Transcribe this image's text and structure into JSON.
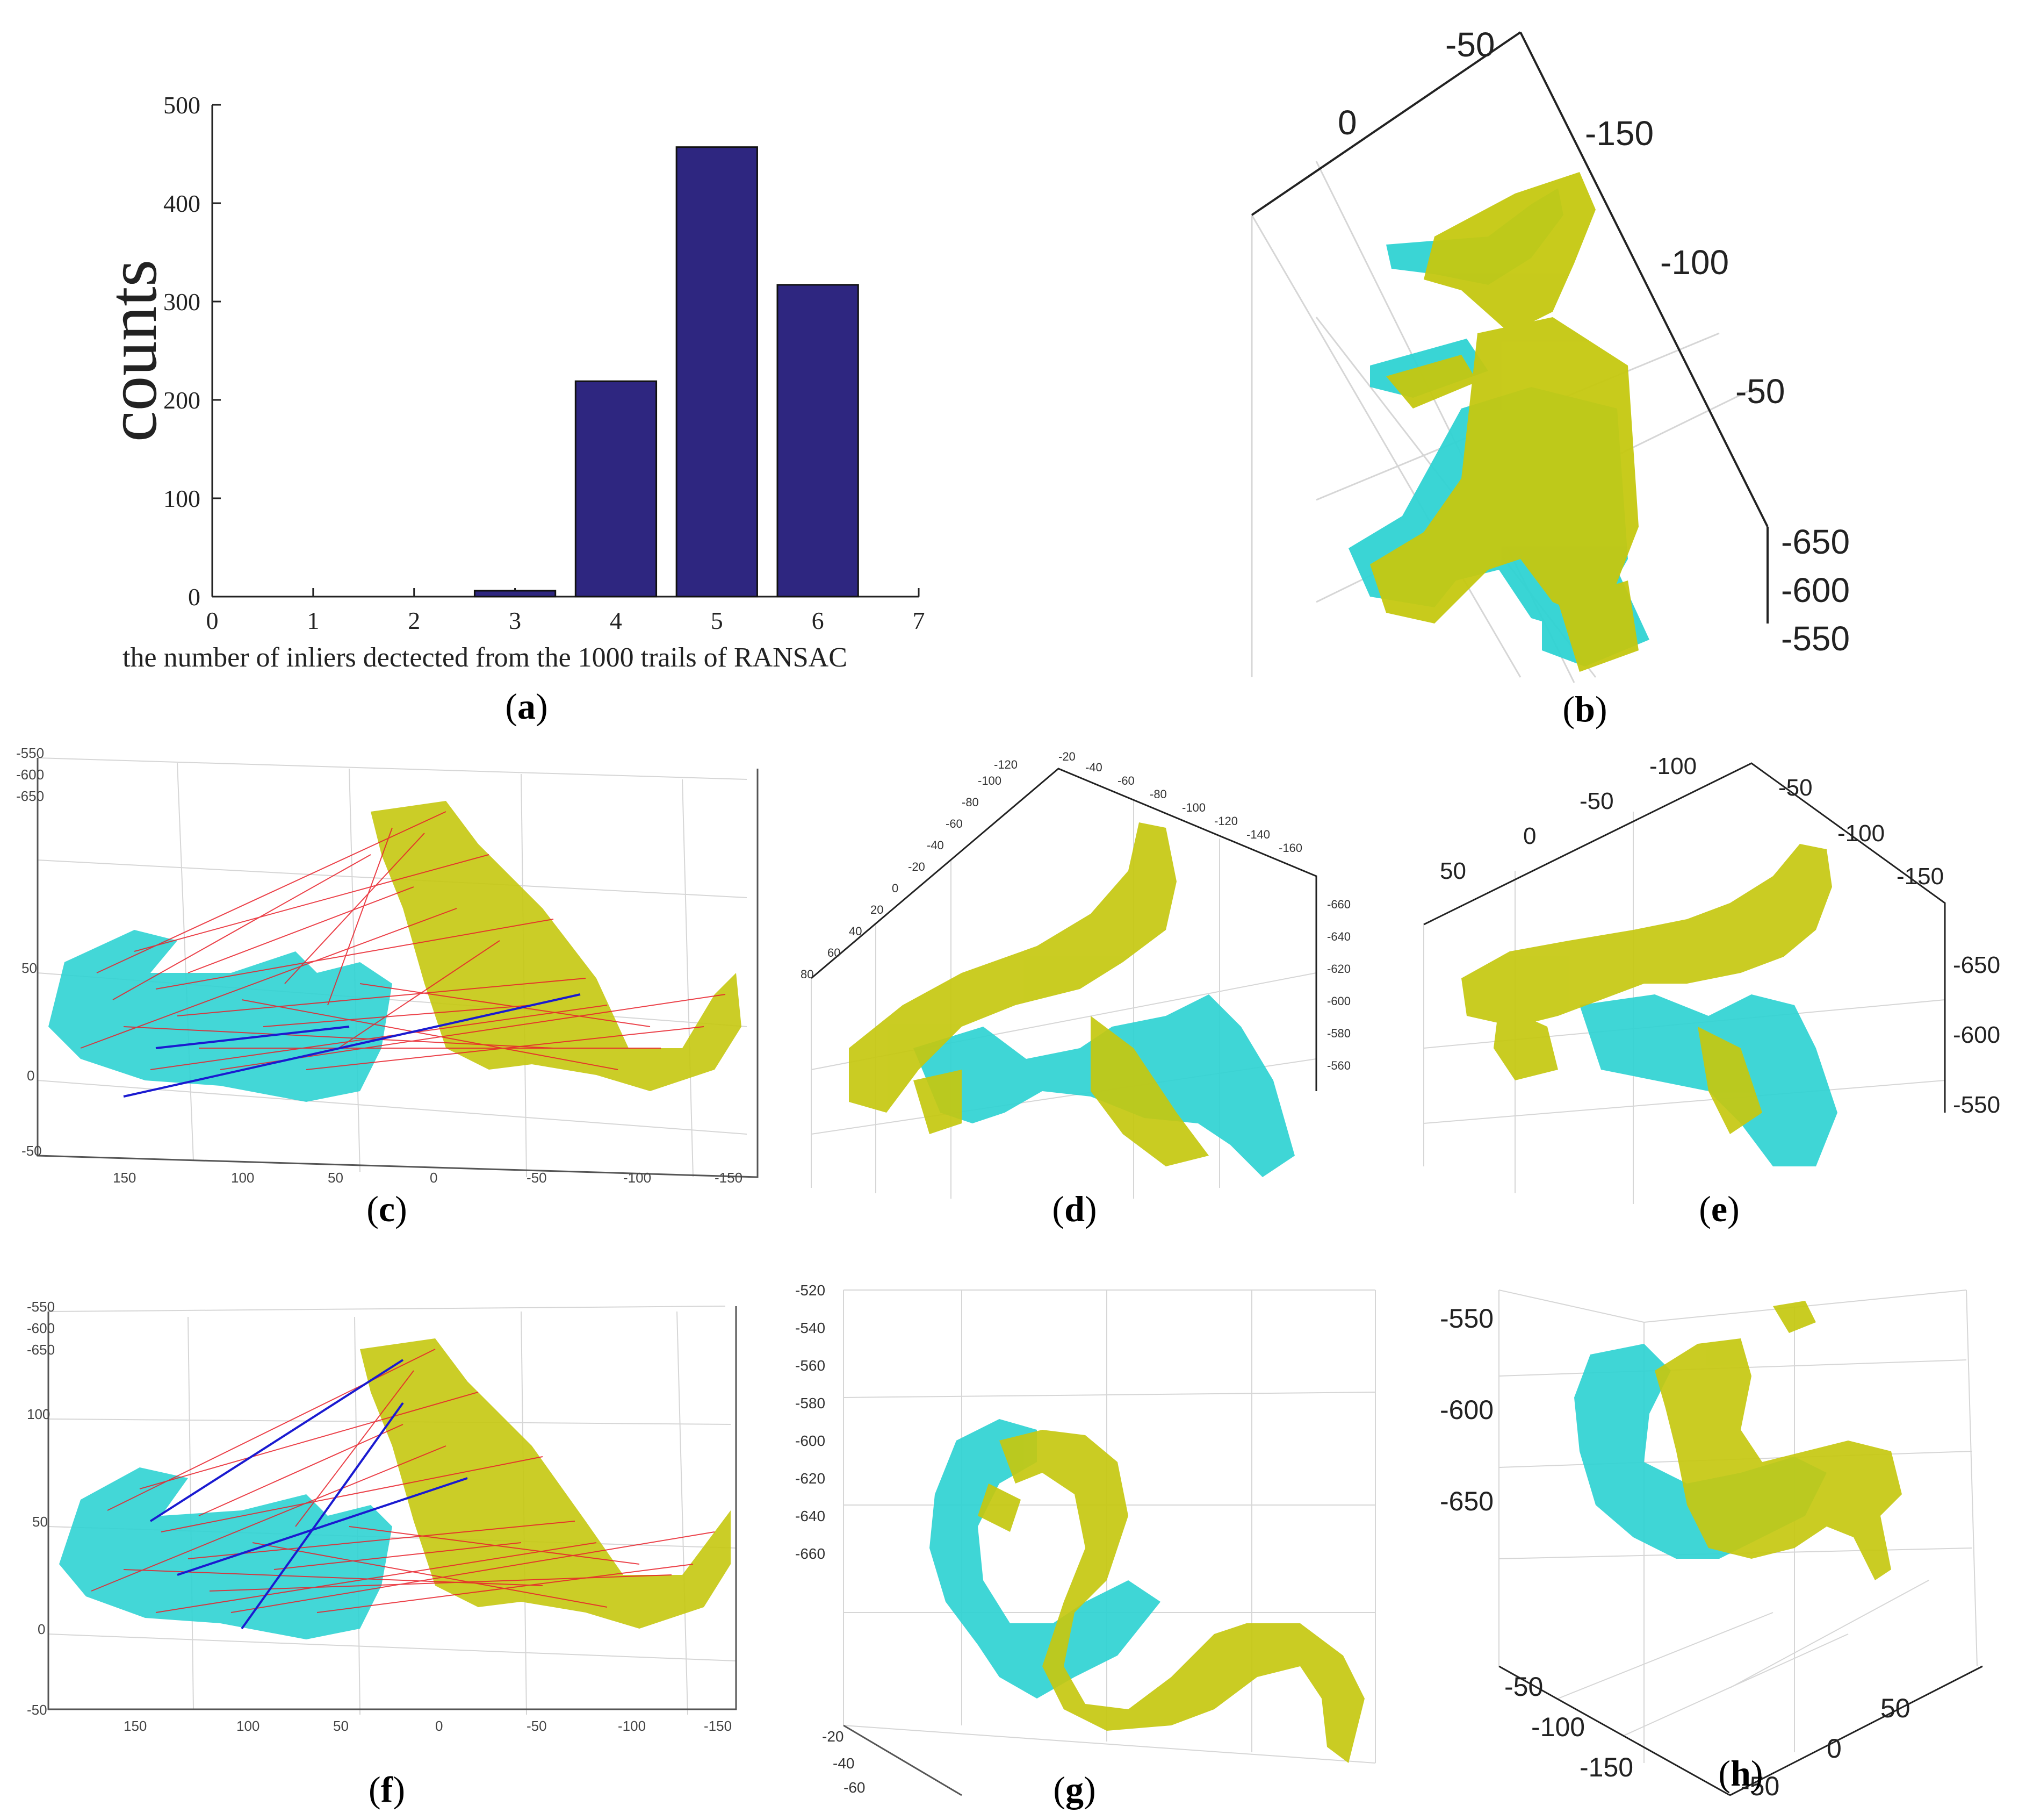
{
  "colors": {
    "bar": "#2e2680",
    "cyan": "#2fd3d3",
    "yellow": "#c5c810",
    "match_line": "#e8202a",
    "inlier_line": "#1a1ad0",
    "grid": "#d6d6d6",
    "axis": "#222222"
  },
  "chart_data": [
    {
      "id": "a",
      "type": "bar",
      "xlabel": "the number of inliers dectected from the 1000 trails of RANSAC",
      "ylabel": "counts",
      "xlim": [
        0,
        7
      ],
      "ylim": [
        0,
        500
      ],
      "xticks": [
        "0",
        "1",
        "2",
        "3",
        "4",
        "5",
        "6",
        "7"
      ],
      "yticks": [
        "0",
        "100",
        "200",
        "300",
        "400",
        "500"
      ],
      "x": [
        1,
        2,
        3,
        4,
        5,
        6
      ],
      "values": [
        0,
        0,
        6,
        219,
        457,
        317
      ],
      "caption": "a"
    },
    {
      "id": "b",
      "type": "scatter",
      "description_of_marks": "point clouds",
      "tick_labels": [
        "-50",
        "0",
        "-150",
        "-100",
        "-50",
        "-650",
        "-600",
        "-550"
      ],
      "caption": "b"
    },
    {
      "id": "c",
      "type": "scatter",
      "tick_labels": [
        "-550",
        "-600",
        "-650",
        "50",
        "0",
        "-50",
        "150",
        "100",
        "50",
        "0",
        "-50",
        "-100",
        "-150"
      ],
      "caption": "c"
    },
    {
      "id": "d",
      "type": "scatter",
      "tick_labels_left": [
        "-120",
        "-100",
        "-80",
        "-60",
        "-40",
        "-20",
        "0",
        "20",
        "40",
        "60",
        "80"
      ],
      "tick_labels_top": [
        "-20",
        "-40",
        "-60",
        "-80",
        "-100",
        "-120",
        "-140",
        "-160"
      ],
      "tick_labels_right": [
        "-660",
        "-640",
        "-620",
        "-600",
        "-580",
        "-560"
      ],
      "caption": "d"
    },
    {
      "id": "e",
      "type": "scatter",
      "tick_labels_left": [
        "50",
        "0",
        "-50",
        "-100"
      ],
      "tick_labels_right_top": [
        "-50",
        "-100",
        "-150"
      ],
      "tick_labels_right": [
        "-650",
        "-600",
        "-550"
      ],
      "caption": "e"
    },
    {
      "id": "f",
      "type": "scatter",
      "tick_labels": [
        "-550",
        "-600",
        "-650",
        "100",
        "50",
        "0",
        "-50",
        "150",
        "100",
        "50",
        "0",
        "-50",
        "-100",
        "-150"
      ],
      "caption": "f"
    },
    {
      "id": "g",
      "type": "scatter",
      "tick_labels_left": [
        "-520",
        "-540",
        "-560",
        "-580",
        "-600",
        "-620",
        "-640",
        "-660"
      ],
      "tick_labels_bottom": [
        "-20",
        "-40",
        "-60"
      ],
      "caption": "g"
    },
    {
      "id": "h",
      "type": "scatter",
      "tick_labels_left": [
        "-550",
        "-600",
        "-650"
      ],
      "tick_labels_bottom_left": [
        "-50",
        "-100",
        "-150"
      ],
      "tick_labels_bottom_right": [
        "50",
        "0",
        "-50"
      ],
      "caption": "h"
    }
  ]
}
